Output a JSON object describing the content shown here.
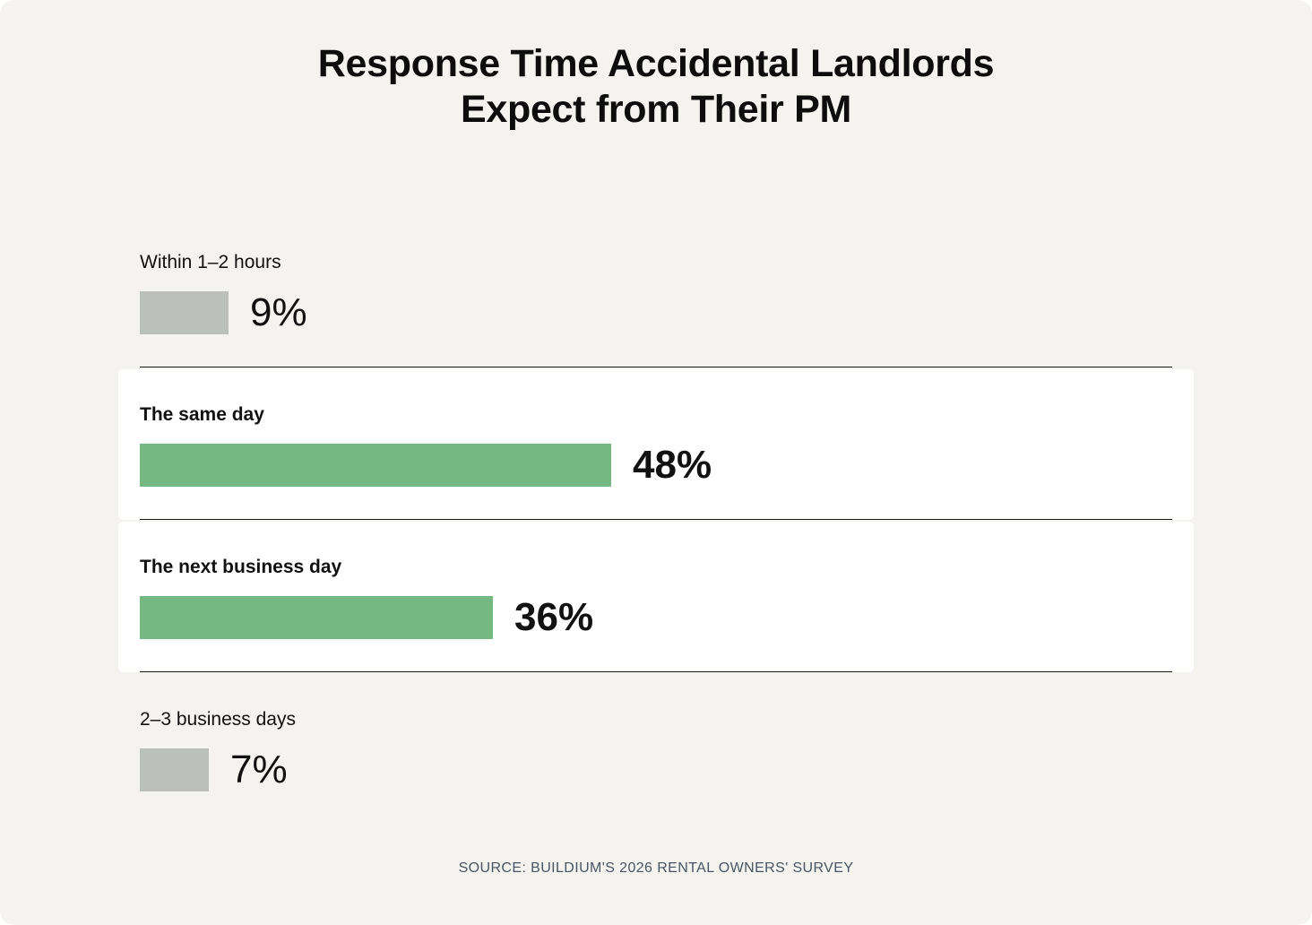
{
  "chart_data": {
    "type": "bar",
    "orientation": "horizontal",
    "title": [
      "Response Time Accidental Landlords",
      "Expect from Their PM"
    ],
    "categories": [
      "Within 1–2 hours",
      "The same day",
      "The next business day",
      "2–3 business days"
    ],
    "values": [
      9,
      48,
      36,
      7
    ],
    "value_labels": [
      "9%",
      "48%",
      "36%",
      "7%"
    ],
    "highlighted": [
      false,
      true,
      true,
      false
    ],
    "xlim": [
      0,
      100
    ],
    "grid": false,
    "legend": "none",
    "colors": {
      "highlight": "#76b882",
      "muted": "#bcc0ba",
      "highlight_row_background": "#ffffff",
      "card_background": "#f4f3ef"
    }
  },
  "source": "SOURCE: BUILDIUM'S 2026 RENTAL OWNERS' SURVEY"
}
